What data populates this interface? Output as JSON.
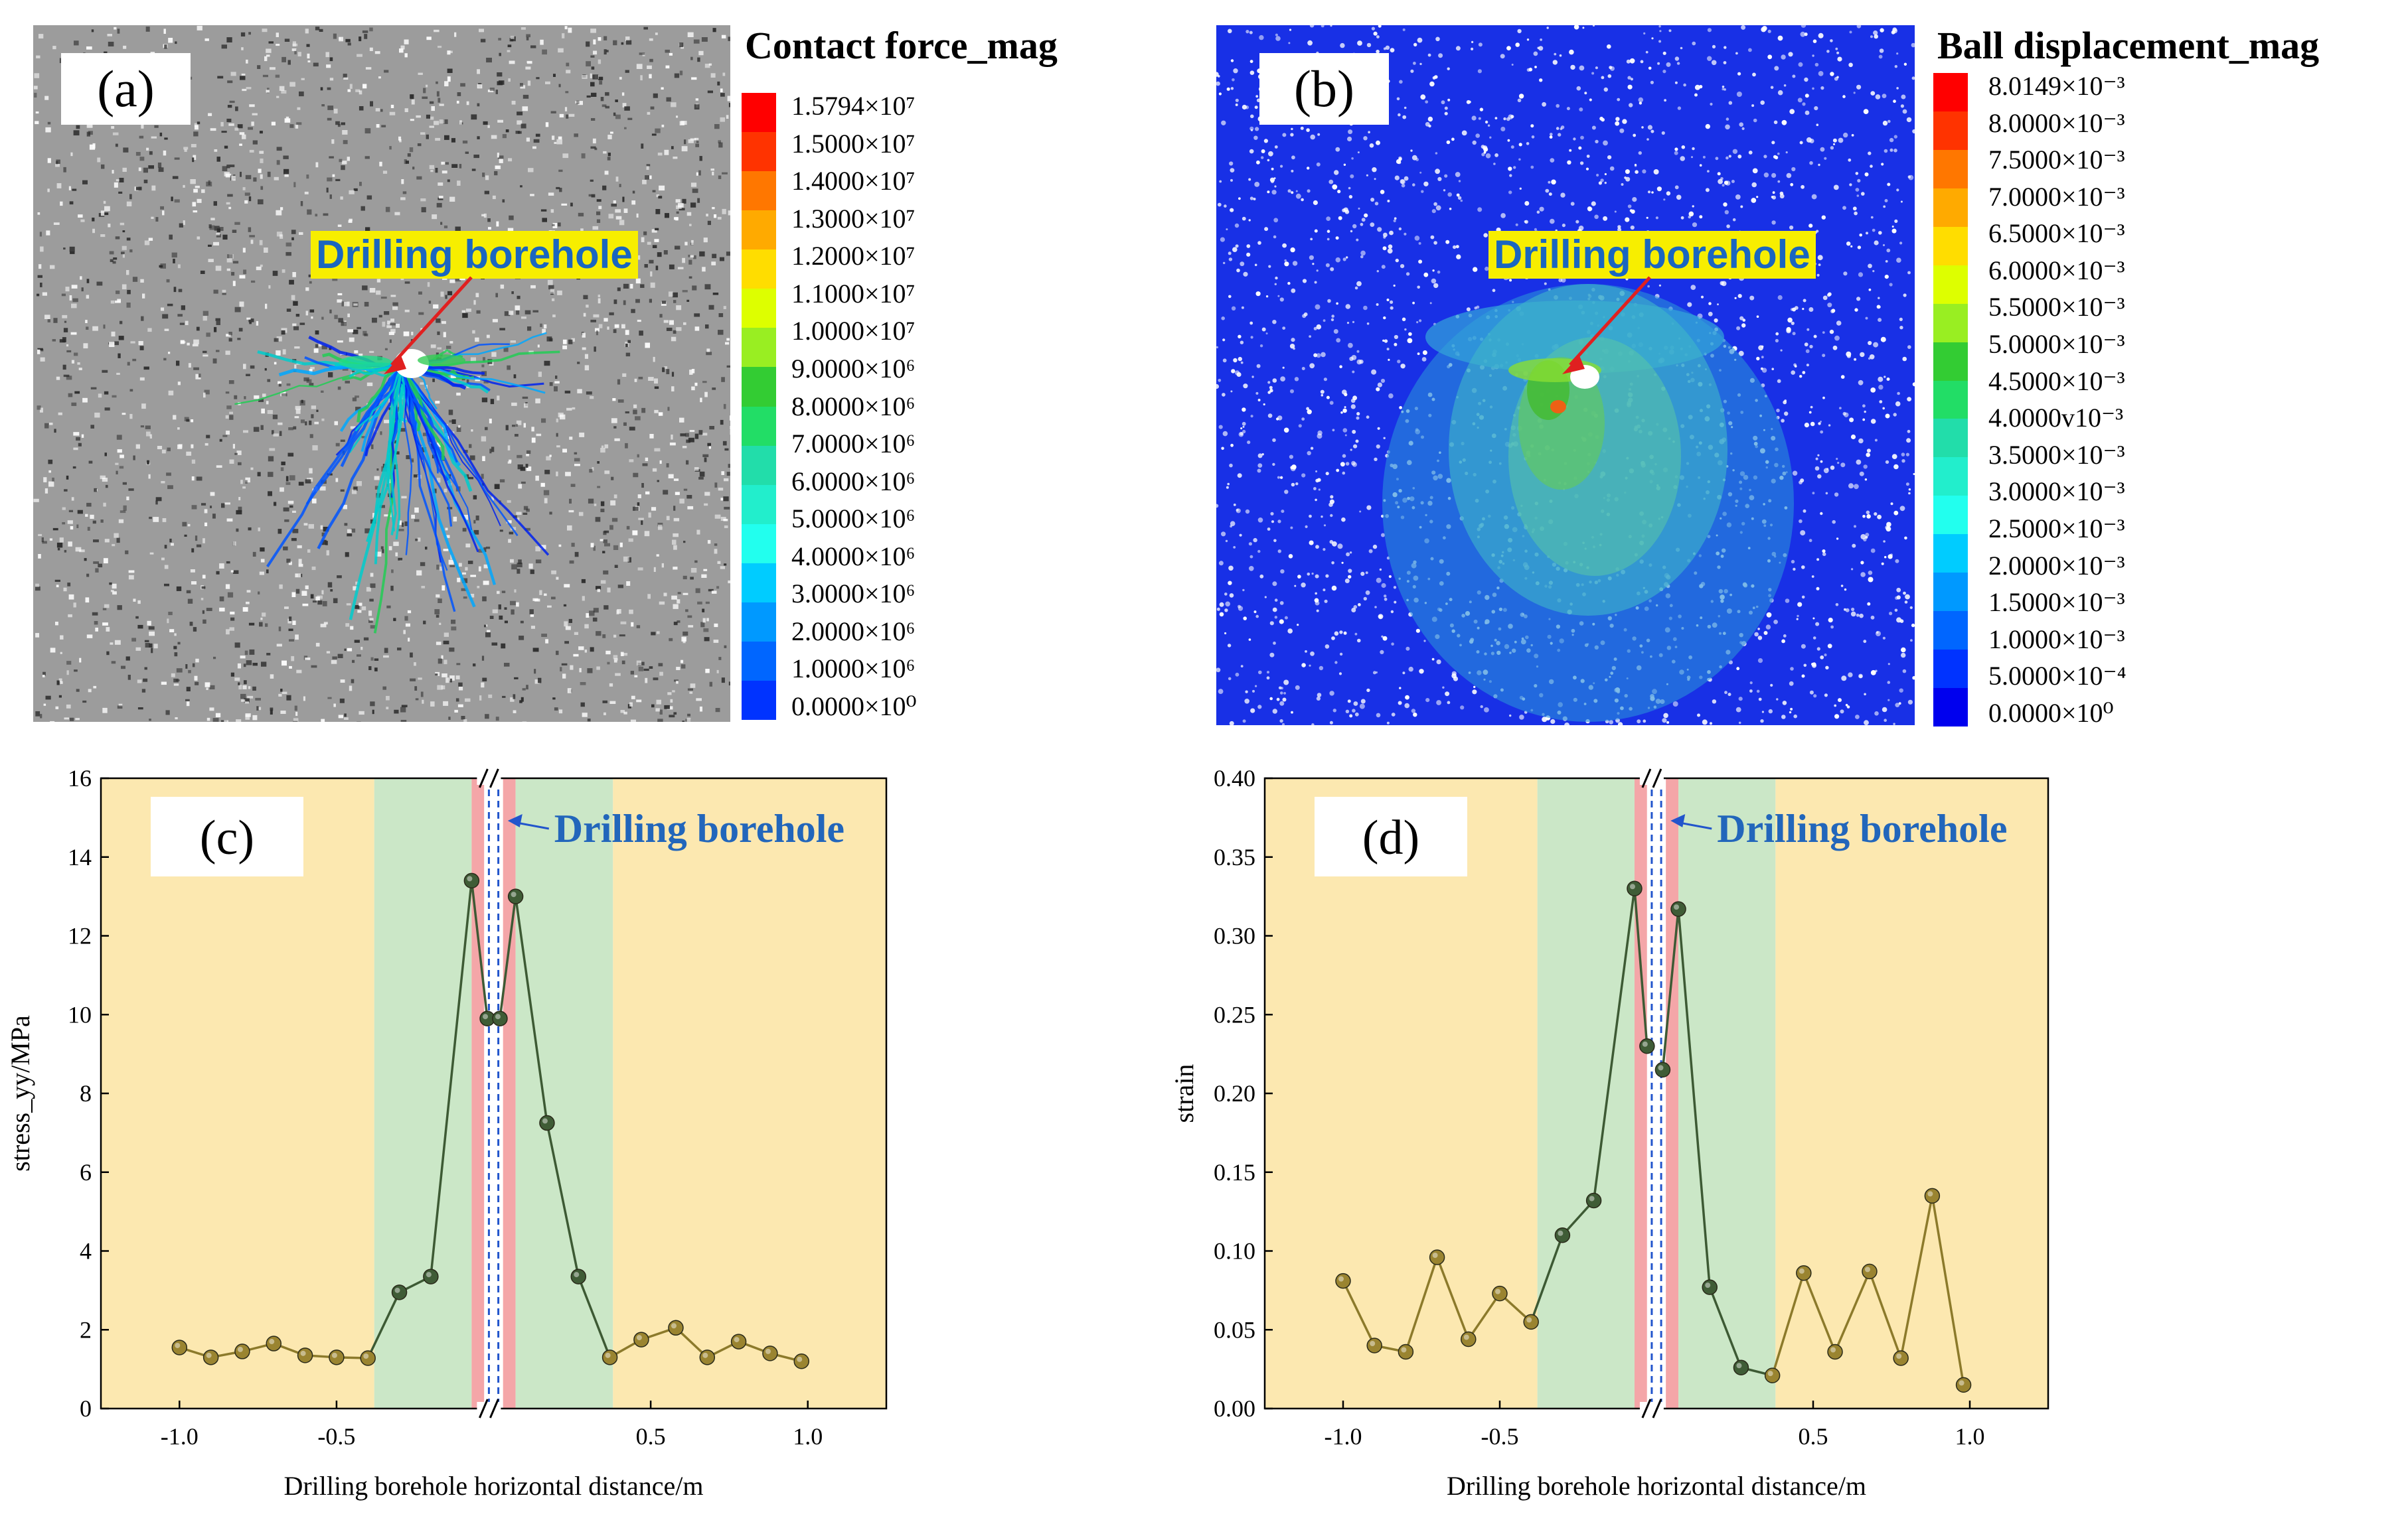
{
  "panels": {
    "a": {
      "label": "(a)",
      "colorbar_title": "Contact force_mag",
      "annotation": "Drilling borehole",
      "ticks": [
        "1.5794×10⁷",
        "1.5000×10⁷",
        "1.4000×10⁷",
        "1.3000×10⁷",
        "1.2000×10⁷",
        "1.1000×10⁷",
        "1.0000×10⁷",
        "9.0000×10⁶",
        "8.0000×10⁶",
        "7.0000×10⁶",
        "6.0000×10⁶",
        "5.0000×10⁶",
        "4.0000×10⁶",
        "3.0000×10⁶",
        "2.0000×10⁶",
        "1.0000×10⁶",
        "0.0000×10⁰"
      ]
    },
    "b": {
      "label": "(b)",
      "colorbar_title": "Ball displacement_mag",
      "annotation": "Drilling borehole",
      "ticks": [
        "8.0149×10⁻³",
        "8.0000×10⁻³",
        "7.5000×10⁻³",
        "7.0000×10⁻³",
        "6.5000×10⁻³",
        "6.0000×10⁻³",
        "5.5000×10⁻³",
        "5.0000×10⁻³",
        "4.5000×10⁻³",
        "4.0000v10⁻³",
        "3.5000×10⁻³",
        "3.0000×10⁻³",
        "2.5000×10⁻³",
        "2.0000×10⁻³",
        "1.5000×10⁻³",
        "1.0000×10⁻³",
        "5.0000×10⁻⁴",
        "0.0000×10⁰"
      ]
    }
  },
  "colorbar_colors": [
    "#ff0000",
    "#ff3300",
    "#ff7700",
    "#ffaa00",
    "#ffdd00",
    "#ddff00",
    "#99ee22",
    "#33cc33",
    "#22dd66",
    "#22ddaa",
    "#22eecc",
    "#22ffee",
    "#00ccff",
    "#0099ff",
    "#0066ff",
    "#0033ff",
    "#0000ee"
  ],
  "chart_data": [
    {
      "id": "c",
      "type": "line",
      "label": "(c)",
      "xlabel": "Drilling borehole horizontal distance/m",
      "ylabel": "stress_yy/MPa",
      "annotation": "Drilling borehole",
      "xlim": [
        -1.25,
        1.25
      ],
      "ylim": [
        0,
        16
      ],
      "xticks": [
        -1.0,
        -0.5,
        0.5,
        1.0
      ],
      "xtick_labels": [
        "-1.0",
        "-0.5",
        "0.5",
        "1.0"
      ],
      "yticks": [
        0,
        2,
        4,
        6,
        8,
        10,
        12,
        14,
        16
      ],
      "ytick_labels": [
        "0",
        "2",
        "4",
        "6",
        "8",
        "10",
        "12",
        "14",
        "16"
      ],
      "zones": [
        {
          "name": "outer-left",
          "from": -1.25,
          "to": -0.38,
          "color": "#fce8b0"
        },
        {
          "name": "plastic-left",
          "from": -0.38,
          "to": -0.07,
          "color": "#cbe7c7"
        },
        {
          "name": "fracture-left",
          "from": -0.07,
          "to": -0.03,
          "color": "#f4a6a8"
        },
        {
          "name": "borehole",
          "from": -0.03,
          "to": 0.03,
          "color": "#ffffff"
        },
        {
          "name": "fracture-right",
          "from": 0.03,
          "to": 0.07,
          "color": "#f4a6a8"
        },
        {
          "name": "plastic-right",
          "from": 0.07,
          "to": 0.38,
          "color": "#cbe7c7"
        },
        {
          "name": "outer-right",
          "from": 0.38,
          "to": 1.25,
          "color": "#fce8b0"
        }
      ],
      "left": {
        "x": [
          -1.0,
          -0.9,
          -0.8,
          -0.7,
          -0.6,
          -0.5,
          -0.4,
          -0.3,
          -0.2,
          -0.07,
          -0.02
        ],
        "y": [
          1.55,
          1.3,
          1.45,
          1.65,
          1.35,
          1.3,
          1.28,
          2.95,
          3.35,
          13.4,
          9.9
        ]
      },
      "right": {
        "x": [
          0.02,
          0.07,
          0.17,
          0.27,
          0.37,
          0.47,
          0.58,
          0.68,
          0.78,
          0.88,
          0.98
        ],
        "y": [
          9.9,
          13.0,
          7.25,
          3.35,
          1.3,
          1.75,
          2.05,
          1.3,
          1.7,
          1.4,
          1.2
        ]
      }
    },
    {
      "id": "d",
      "type": "line",
      "label": "(d)",
      "xlabel": "Drilling borehole horizontal distance/m",
      "ylabel": "strain",
      "annotation": "Drilling borehole",
      "xlim": [
        -1.25,
        1.25
      ],
      "ylim": [
        0,
        0.4
      ],
      "xticks": [
        -1.0,
        -0.5,
        0.5,
        1.0
      ],
      "xtick_labels": [
        "-1.0",
        "-0.5",
        "0.5",
        "1.0"
      ],
      "yticks": [
        0,
        0.05,
        0.1,
        0.15,
        0.2,
        0.25,
        0.3,
        0.35,
        0.4
      ],
      "ytick_labels": [
        "0.00",
        "0.05",
        "0.10",
        "0.15",
        "0.20",
        "0.25",
        "0.30",
        "0.35",
        "0.40"
      ],
      "zones": [
        {
          "name": "outer-left",
          "from": -1.25,
          "to": -0.38,
          "color": "#fce8b0"
        },
        {
          "name": "plastic-left",
          "from": -0.38,
          "to": -0.07,
          "color": "#cbe7c7"
        },
        {
          "name": "fracture-left",
          "from": -0.07,
          "to": -0.03,
          "color": "#f4a6a8"
        },
        {
          "name": "borehole",
          "from": -0.03,
          "to": 0.03,
          "color": "#ffffff"
        },
        {
          "name": "fracture-right",
          "from": 0.03,
          "to": 0.07,
          "color": "#f4a6a8"
        },
        {
          "name": "plastic-right",
          "from": 0.07,
          "to": 0.38,
          "color": "#cbe7c7"
        },
        {
          "name": "outer-right",
          "from": 0.38,
          "to": 1.25,
          "color": "#fce8b0"
        }
      ],
      "left": {
        "x": [
          -1.0,
          -0.9,
          -0.8,
          -0.7,
          -0.6,
          -0.5,
          -0.4,
          -0.3,
          -0.2,
          -0.07,
          -0.03
        ],
        "y": [
          0.081,
          0.04,
          0.036,
          0.096,
          0.044,
          0.073,
          0.055,
          0.11,
          0.132,
          0.33,
          0.23
        ]
      },
      "right": {
        "x": [
          0.02,
          0.07,
          0.17,
          0.27,
          0.37,
          0.47,
          0.57,
          0.68,
          0.78,
          0.88,
          0.98
        ],
        "y": [
          0.215,
          0.317,
          0.077,
          0.026,
          0.021,
          0.086,
          0.036,
          0.087,
          0.032,
          0.135,
          0.015
        ]
      }
    }
  ]
}
